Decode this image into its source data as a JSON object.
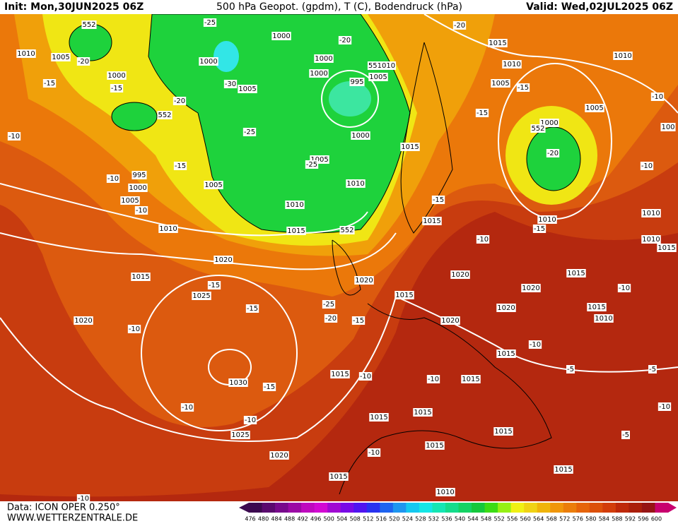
{
  "header": {
    "init": "Init: Mon,30JUN2025 06Z",
    "title": "500 hPa Geopot. (gpdm), T (C), Bodendruck (hPa)",
    "valid": "Valid: Wed,02JUL2025 06Z"
  },
  "footer": {
    "data": "Data: ICON OPER 0.250°",
    "site": "WWW.WETTERZENTRALE.DE"
  },
  "colorbar": {
    "values": [
      476,
      480,
      484,
      488,
      492,
      496,
      500,
      504,
      508,
      512,
      516,
      520,
      524,
      528,
      532,
      536,
      540,
      544,
      548,
      552,
      556,
      560,
      564,
      568,
      572,
      576,
      580,
      584,
      588,
      592,
      596,
      600
    ],
    "colors": [
      "#3c0a50",
      "#5a0a6e",
      "#780a8c",
      "#9b0aa5",
      "#be0abe",
      "#d20ad2",
      "#a00ad2",
      "#780ae6",
      "#5014f0",
      "#2832f0",
      "#1e64f0",
      "#1e96f0",
      "#14c8f0",
      "#14e6e6",
      "#14e6b4",
      "#14dc8c",
      "#14d264",
      "#14c83c",
      "#3cdc14",
      "#96f014",
      "#f0f014",
      "#f0d214",
      "#f0b40a",
      "#f0960a",
      "#eb7d0a",
      "#e6640a",
      "#dc500a",
      "#d23c0a",
      "#be280a",
      "#aa1e0a",
      "#961414",
      "#c8006e"
    ]
  },
  "map_labels": [
    "552",
    "1010",
    "1005",
    "-20",
    "1000",
    "-15",
    "-15",
    "552",
    "-20",
    "-10",
    "995",
    "-10",
    "1000",
    "1005",
    "-10",
    "-15",
    "1010",
    "-25",
    "1000",
    "1000",
    "1000",
    "1000",
    "-30",
    "1005",
    "-20",
    "995",
    "551010",
    "1005",
    "-25",
    "1000",
    "1005",
    "-25",
    "1010",
    "1005",
    "1010",
    "1015",
    "552",
    "1015",
    "-20",
    "1015",
    "1010",
    "1005",
    "-15",
    "-15",
    "1000",
    "552",
    "-20",
    "1005",
    "1010",
    "-10",
    "100",
    "-10",
    "-15",
    "1015",
    "-15",
    "1010",
    "1010",
    "1010",
    "1015",
    "-10",
    "1020",
    "1015",
    "-15",
    "1025",
    "-15",
    "-25",
    "-20",
    "-15",
    "1020",
    "1015",
    "1020",
    "1020",
    "1015",
    "1020",
    "1020",
    "1015",
    "1010",
    "-10",
    "1020",
    "-10",
    "1015",
    "-10",
    "-5",
    "-5",
    "1015",
    "-10",
    "1015",
    "-10",
    "1030",
    "-15",
    "-10",
    "1015",
    "1015",
    "-10",
    "-10",
    "1025",
    "1015",
    "1015",
    "-10",
    "1020",
    "-5",
    "1015",
    "1015",
    "1010",
    "-10"
  ]
}
